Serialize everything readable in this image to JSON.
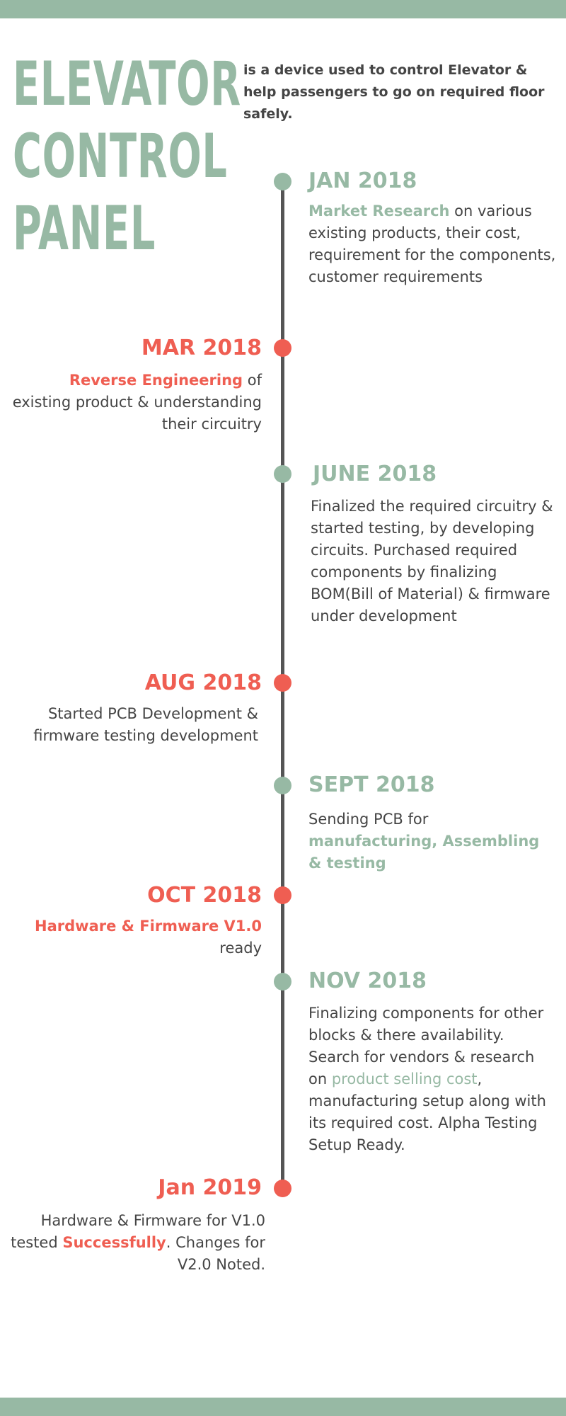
{
  "title_lines": [
    "ELEVATOR",
    "CONTROL",
    "PANEL"
  ],
  "tagline": "is a device used to control Elevator & help passengers to go on required floor safely.",
  "colors": {
    "accent_green": "#97b9a4",
    "accent_red": "#ef5e52",
    "text": "#454545",
    "line": "#555555"
  },
  "milestones": [
    {
      "date": "JAN 2018",
      "hl": "Market Research",
      "rest": " on various existing products, their cost, requirement for the components, customer requirements"
    },
    {
      "date": "MAR 2018",
      "hl": "Reverse Engineering",
      "rest": " of existing product & understanding their circuitry"
    },
    {
      "date": "JUNE 2018",
      "text": "Finalized the required circuitry & started testing, by developing circuits. Purchased required components by finalizing BOM(Bill of Material)  & firmware under development"
    },
    {
      "date": "AUG 2018",
      "text": "Started PCB Development & firmware testing development"
    },
    {
      "date": "SEPT 2018",
      "pre": "Sending PCB for ",
      "hl": "manufacturing, Assembling & testing"
    },
    {
      "date": "OCT 2018",
      "hl": "Hardware & Firmware V1.0",
      "rest": " ready"
    },
    {
      "date": "NOV 2018",
      "pre": "Finalizing components for other blocks & there availability. Search for vendors & research on ",
      "hl": "product selling cost",
      "rest": ",  manufacturing setup along with its required cost.  Alpha Testing Setup Ready."
    },
    {
      "date": "Jan 2019",
      "pre": "Hardware & Firmware for V1.0 tested ",
      "hl": "Successfully",
      "rest": ". Changes for V2.0 Noted."
    }
  ]
}
